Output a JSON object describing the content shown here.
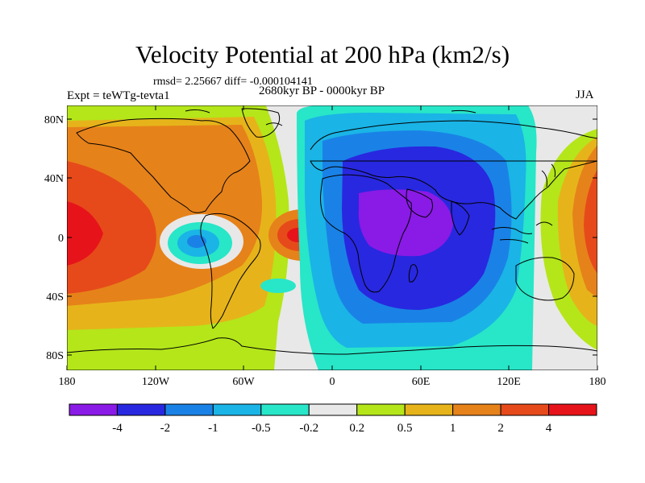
{
  "title": "Velocity Potential at 200 hPa (km2/s)",
  "stats": "rmsd= 2.25667 diff= -0.000104141",
  "experiment": "Expt = teWTg-tevta1",
  "period": "2680kyr BP - 0000kyr BP",
  "season": "JJA",
  "lat_ticks": [
    "80N",
    "40N",
    "0",
    "40S",
    "80S"
  ],
  "lon_ticks": [
    "180",
    "120W",
    "60W",
    "0",
    "60E",
    "120E",
    "180"
  ],
  "colorbar": {
    "colors": [
      "#8a1ae6",
      "#2828e0",
      "#1a82e6",
      "#1ab4e6",
      "#28e6c8",
      "#e8e8e8",
      "#b4e61a",
      "#e6b41a",
      "#e6821a",
      "#e64a1a",
      "#e6141a"
    ],
    "labels": [
      "-4",
      "-2",
      "-1",
      "-0.5",
      "-0.2",
      "0.2",
      "0.5",
      "1",
      "2",
      "4"
    ]
  }
}
